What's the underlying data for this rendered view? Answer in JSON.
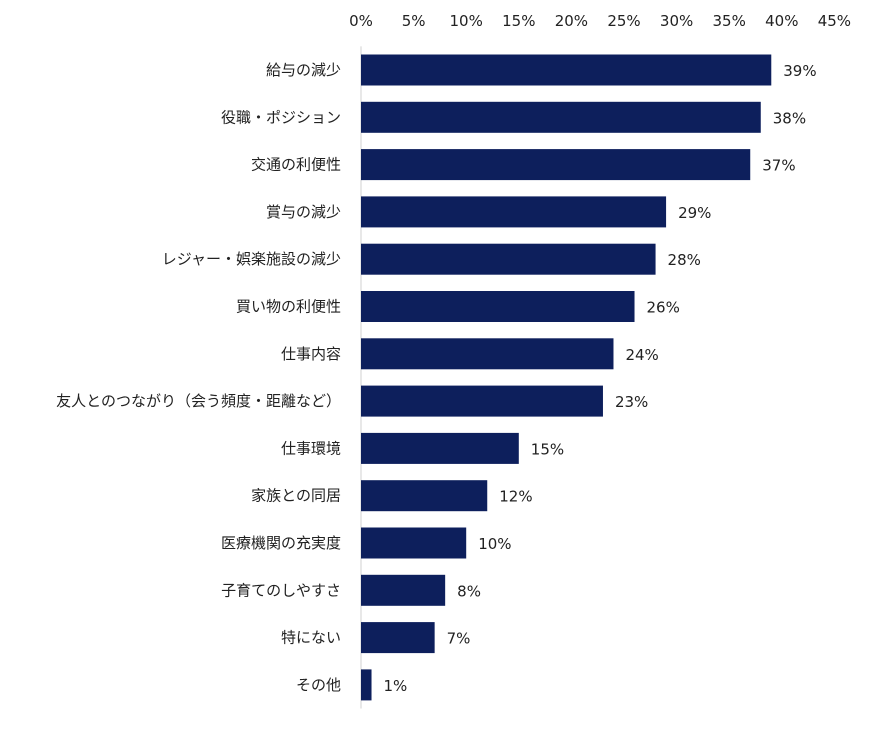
{
  "chart_data": {
    "type": "bar",
    "orientation": "horizontal",
    "categories": [
      "給与の減少",
      "役職・ポジション",
      "交通の利便性",
      "賞与の減少",
      "レジャー・娯楽施設の減少",
      "買い物の利便性",
      "仕事内容",
      "友人とのつながり（会う頻度・距離など）",
      "仕事環境",
      "家族との同居",
      "医療機関の充実度",
      "子育てのしやすさ",
      "特にない",
      "その他"
    ],
    "values": [
      39,
      38,
      37,
      29,
      28,
      26,
      24,
      23,
      15,
      12,
      10,
      8,
      7,
      1
    ],
    "value_labels": [
      "39%",
      "38%",
      "37%",
      "29%",
      "28%",
      "26%",
      "24%",
      "23%",
      "15%",
      "12%",
      "10%",
      "8%",
      "7%",
      "1%"
    ],
    "x_ticks": [
      "0%",
      "5%",
      "10%",
      "15%",
      "20%",
      "25%",
      "30%",
      "35%",
      "40%",
      "45%"
    ],
    "xlim": [
      0,
      45
    ],
    "axis_position": "top",
    "grid": false,
    "bar_color": "#0d1f5c"
  }
}
